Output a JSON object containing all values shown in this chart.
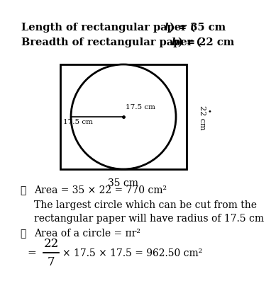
{
  "line1_parts": [
    "Length of rectangular paper (",
    "l",
    ") = 35 cm"
  ],
  "line2_parts": [
    "Breadth of rectangular paper (",
    "b",
    ") = 22 cm"
  ],
  "label_35cm": "35 cm",
  "label_22cm": "22 cm",
  "label_175cm_top": "17.5 cm",
  "label_175cm_left": "17.5 cm",
  "text_therefore1": "∴",
  "text_area": "Area = 35 × 22 = 770 cm²",
  "text_largest": "The largest circle which can be cut from the",
  "text_largest2": "rectangular paper will have radius of 17.5 cm",
  "text_therefore2": "∴",
  "text_area_circle": "Area of a circle = πr²",
  "text_equals": "=",
  "text_numerator": "22",
  "text_denominator": "7",
  "text_rest": "× 17.5 × 17.5 = 962.50 cm²",
  "bg_color": "#ffffff",
  "text_color": "#000000"
}
